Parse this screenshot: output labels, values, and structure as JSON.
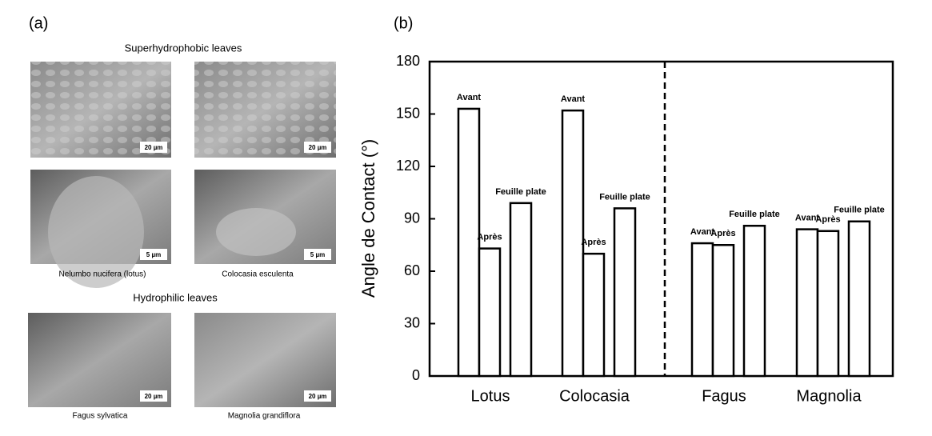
{
  "panel_a": {
    "label": "(a)",
    "group_1": {
      "title": "Superhydrophobic leaves",
      "captions": [
        "Nelumbo nucifera (lotus)",
        "Colocasia esculenta"
      ],
      "scale_bars": [
        "20 µm",
        "20 µm",
        "5 µm",
        "5 µm"
      ]
    },
    "group_2": {
      "title": "Hydrophilic leaves",
      "captions": [
        "Fagus sylvatica",
        "Magnolia grandiflora"
      ],
      "scale_bars": [
        "20 µm",
        "20 µm"
      ]
    }
  },
  "chart_data": {
    "type": "bar",
    "panel_label": "(b)",
    "y_label": "Angle de Contact (°)",
    "categories": [
      "Lotus",
      "Colocasia",
      "Fagus",
      "Magnolia"
    ],
    "series": [
      {
        "name": "Avant",
        "color": "#ffffff",
        "values": [
          153,
          152,
          76,
          84
        ]
      },
      {
        "name": "Après",
        "color": "#ffffff",
        "values": [
          73,
          70,
          75,
          83
        ]
      },
      {
        "name": "Feuille plate",
        "color": "#ffffff",
        "values": [
          99,
          96,
          86,
          88.5
        ]
      }
    ],
    "ylim": [
      0,
      180
    ],
    "yticks": [
      0,
      30,
      60,
      90,
      120,
      150,
      180
    ],
    "grid": false
  }
}
